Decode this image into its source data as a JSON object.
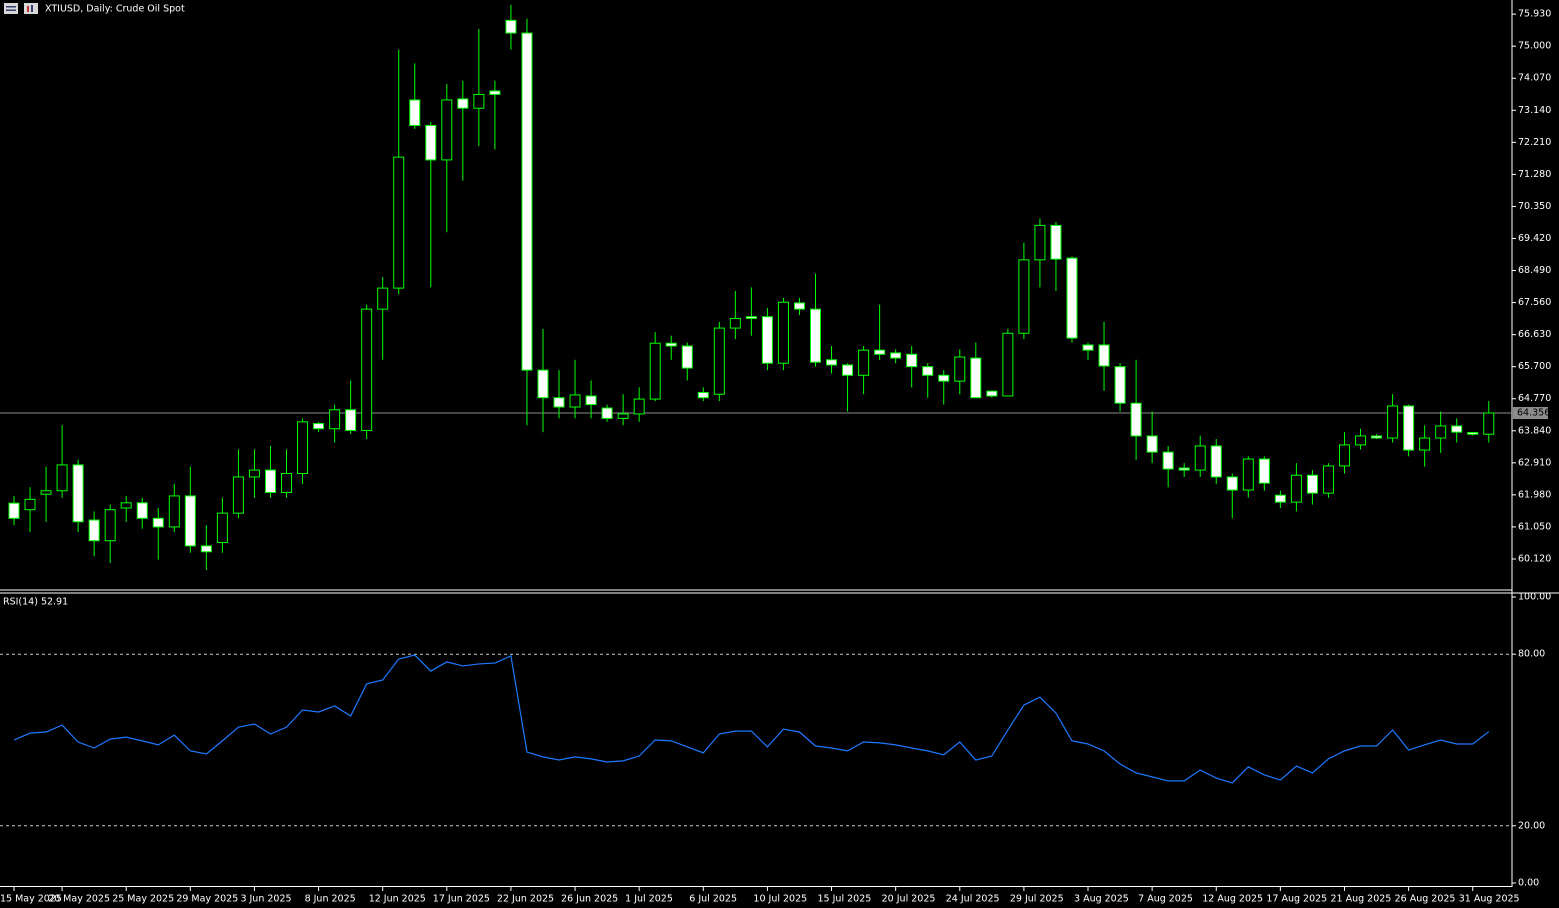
{
  "chart_data": [
    {
      "type": "candlestick",
      "title": "XTIUSD, Daily:  Crude Oil Spot",
      "categories": [
        "15 May 2025",
        null,
        null,
        "20 May 2025",
        null,
        null,
        null,
        "25 May 2025",
        null,
        null,
        null,
        "29 May 2025",
        null,
        null,
        null,
        "3 Jun 2025",
        null,
        null,
        null,
        "8 Jun 2025",
        null,
        null,
        null,
        "12 Jun 2025",
        null,
        null,
        null,
        "17 Jun 2025",
        null,
        null,
        null,
        "22 Jun 2025",
        null,
        null,
        null,
        "26 Jun 2025",
        null,
        null,
        null,
        "1 Jul 2025",
        null,
        null,
        null,
        "6 Jul 2025",
        null,
        null,
        null,
        "10 Jul 2025",
        null,
        null,
        null,
        "15 Jul 2025",
        null,
        null,
        null,
        "20 Jul 2025",
        null,
        null,
        null,
        "24 Jul 2025",
        null,
        null,
        null,
        "29 Jul 2025",
        null,
        null,
        null,
        "3 Aug 2025",
        null,
        null,
        null,
        "7 Aug 2025",
        null,
        null,
        null,
        "12 Aug 2025",
        null,
        null,
        null,
        "17 Aug 2025",
        null,
        null,
        null,
        "21 Aug 2025",
        null,
        null,
        null,
        "26 Aug 2025",
        null,
        null,
        null,
        "31 Aug 2025",
        null
      ],
      "open": [
        61.74,
        61.55,
        62.0,
        62.1,
        62.85,
        61.25,
        60.65,
        61.6,
        61.75,
        61.3,
        61.05,
        61.95,
        60.5,
        60.6,
        61.45,
        62.5,
        62.7,
        62.05,
        62.6,
        64.05,
        63.9,
        64.45,
        63.85,
        67.37,
        67.98,
        73.44,
        72.7,
        71.7,
        73.47,
        73.2,
        73.7,
        75.75,
        75.38,
        65.6,
        64.8,
        64.53,
        64.85,
        64.5,
        64.2,
        64.33,
        64.76,
        66.38,
        66.3,
        64.95,
        64.9,
        66.82,
        67.15,
        67.15,
        65.8,
        67.55,
        67.37,
        65.9,
        65.75,
        65.45,
        66.18,
        66.1,
        66.06,
        65.7,
        65.45,
        65.28,
        65.95,
        64.99,
        64.85,
        66.67,
        68.8,
        69.8,
        68.85,
        66.33,
        66.33,
        65.7,
        64.64,
        63.69,
        63.22,
        62.76,
        62.7,
        63.4,
        62.5,
        62.12,
        63.02,
        61.97,
        61.77,
        62.55,
        62.03,
        62.82,
        63.43,
        63.69,
        63.63,
        64.56,
        63.28,
        63.63,
        63.98,
        63.79,
        63.74
      ],
      "high": [
        61.95,
        62.2,
        62.8,
        64.0,
        63.0,
        61.5,
        61.7,
        61.95,
        61.9,
        61.6,
        62.3,
        62.8,
        61.1,
        61.9,
        63.3,
        63.3,
        63.4,
        63.3,
        64.2,
        64.1,
        64.6,
        65.3,
        67.5,
        68.3,
        74.9,
        74.5,
        72.8,
        73.9,
        74.0,
        75.5,
        74.0,
        76.2,
        75.8,
        66.8,
        65.6,
        65.9,
        65.3,
        64.6,
        64.9,
        65.1,
        66.7,
        66.6,
        66.4,
        65.1,
        67.0,
        67.9,
        68.0,
        67.4,
        67.7,
        67.7,
        68.4,
        66.3,
        65.8,
        66.3,
        67.5,
        66.2,
        66.3,
        65.8,
        65.6,
        66.2,
        66.4,
        65.0,
        66.8,
        69.3,
        70.0,
        69.9,
        68.9,
        66.4,
        67.0,
        65.8,
        65.9,
        64.4,
        63.4,
        62.9,
        63.7,
        63.6,
        62.6,
        63.1,
        63.1,
        62.1,
        62.9,
        62.7,
        62.9,
        63.8,
        63.9,
        63.75,
        64.9,
        64.6,
        64.0,
        64.4,
        64.2,
        63.8,
        64.7
      ],
      "low": [
        61.1,
        60.9,
        61.2,
        61.9,
        60.9,
        60.2,
        60.0,
        61.2,
        61.0,
        60.1,
        60.9,
        60.3,
        59.8,
        60.3,
        61.3,
        61.9,
        61.9,
        61.9,
        62.3,
        63.8,
        63.5,
        63.75,
        63.6,
        65.9,
        67.8,
        72.6,
        68.0,
        69.6,
        71.1,
        72.1,
        72.0,
        74.9,
        64.0,
        63.8,
        64.2,
        64.2,
        64.2,
        64.1,
        64.0,
        64.1,
        64.7,
        65.9,
        65.3,
        64.7,
        64.7,
        66.5,
        66.6,
        65.6,
        65.6,
        67.2,
        65.7,
        65.5,
        64.4,
        64.9,
        65.9,
        65.8,
        65.1,
        64.8,
        64.6,
        64.9,
        64.8,
        64.8,
        64.85,
        66.5,
        68.0,
        67.9,
        66.4,
        65.9,
        65.0,
        64.4,
        63.0,
        62.9,
        62.2,
        62.5,
        62.5,
        62.3,
        61.3,
        61.9,
        62.1,
        61.6,
        61.5,
        61.7,
        61.9,
        62.6,
        63.3,
        63.6,
        63.5,
        63.1,
        62.8,
        63.2,
        63.5,
        63.7,
        63.5
      ],
      "close": [
        61.3,
        61.85,
        62.1,
        62.85,
        61.2,
        60.65,
        61.55,
        61.75,
        61.3,
        61.05,
        61.95,
        60.5,
        60.33,
        61.45,
        62.5,
        62.7,
        62.05,
        62.6,
        64.1,
        63.9,
        64.45,
        63.85,
        67.37,
        67.98,
        71.78,
        72.7,
        71.7,
        73.44,
        73.2,
        73.6,
        73.6,
        75.38,
        65.6,
        64.8,
        64.53,
        64.88,
        64.6,
        64.2,
        64.33,
        64.76,
        66.38,
        66.3,
        65.66,
        64.8,
        66.82,
        67.1,
        67.1,
        65.8,
        67.57,
        67.37,
        65.83,
        65.75,
        65.45,
        66.18,
        66.06,
        65.95,
        65.7,
        65.45,
        65.28,
        65.98,
        64.8,
        64.85,
        66.67,
        68.8,
        69.8,
        68.82,
        66.53,
        66.18,
        65.72,
        64.64,
        63.69,
        63.22,
        62.73,
        62.7,
        63.4,
        62.5,
        62.12,
        63.02,
        62.32,
        61.77,
        62.55,
        62.03,
        62.82,
        63.43,
        63.69,
        63.63,
        64.56,
        63.28,
        63.63,
        63.98,
        63.8,
        63.74,
        64.356
      ],
      "up_color": "#000000",
      "down_color": "#ffffff",
      "wick_color": "#00ff00",
      "current_price": 64.356,
      "ylim": [
        59.22,
        76.34
      ],
      "yticks": [
        {
          "value": 75.93,
          "label": "75.930"
        },
        {
          "value": 75.0,
          "label": "75.000"
        },
        {
          "value": 74.07,
          "label": "74.070"
        },
        {
          "value": 73.14,
          "label": "73.140"
        },
        {
          "value": 72.21,
          "label": "72.210"
        },
        {
          "value": 71.28,
          "label": "71.280"
        },
        {
          "value": 70.35,
          "label": "70.350"
        },
        {
          "value": 69.42,
          "label": "69.420"
        },
        {
          "value": 68.49,
          "label": "68.490"
        },
        {
          "value": 67.56,
          "label": "67.560"
        },
        {
          "value": 66.63,
          "label": "66.630"
        },
        {
          "value": 65.7,
          "label": "65.700"
        },
        {
          "value": 64.77,
          "label": "64.770"
        },
        {
          "value": 63.84,
          "label": "63.840"
        },
        {
          "value": 62.91,
          "label": "62.910"
        },
        {
          "value": 61.98,
          "label": "61.980"
        },
        {
          "value": 61.05,
          "label": "61.050"
        },
        {
          "value": 60.12,
          "label": "60.120"
        }
      ]
    },
    {
      "type": "line",
      "title": "RSI(14) 52.91",
      "series": [
        {
          "name": "RSI(14)",
          "color": "#1e78ff",
          "values": [
            50,
            52.4,
            52.8,
            55.2,
            49.3,
            47.2,
            50.3,
            51,
            49.7,
            48.3,
            51.7,
            46.2,
            45.1,
            49.7,
            54.5,
            55.6,
            52.1,
            54.5,
            60.5,
            59.8,
            61.9,
            58.4,
            69.6,
            71,
            78.3,
            79.7,
            74.1,
            77.3,
            75.9,
            76.6,
            76.9,
            79.4,
            45.8,
            44.1,
            43,
            44.1,
            43.4,
            42.3,
            42.7,
            44.4,
            50,
            49.7,
            47.6,
            45.5,
            52.1,
            53.1,
            53.1,
            47.6,
            53.8,
            52.8,
            47.9,
            47.2,
            46.2,
            49.3,
            49,
            48.3,
            47.2,
            46.2,
            44.8,
            49.3,
            43,
            44.4,
            53.5,
            62.2,
            65,
            59.4,
            49.7,
            48.6,
            46.2,
            41.6,
            38.5,
            37.1,
            35.7,
            35.7,
            39.5,
            36.7,
            35,
            40.6,
            37.8,
            36,
            40.9,
            38.5,
            43.4,
            46.2,
            47.9,
            47.9,
            53.5,
            46.5,
            48.3,
            50,
            48.6,
            48.6,
            52.91
          ]
        }
      ],
      "ylim": [
        0,
        100
      ],
      "yticks": [
        {
          "value": 100,
          "label": "100.00"
        },
        {
          "value": 80,
          "label": "80.00"
        },
        {
          "value": 20,
          "label": "20.00"
        },
        {
          "value": 0,
          "label": "0.00"
        }
      ],
      "levels": [
        80,
        20
      ]
    }
  ]
}
